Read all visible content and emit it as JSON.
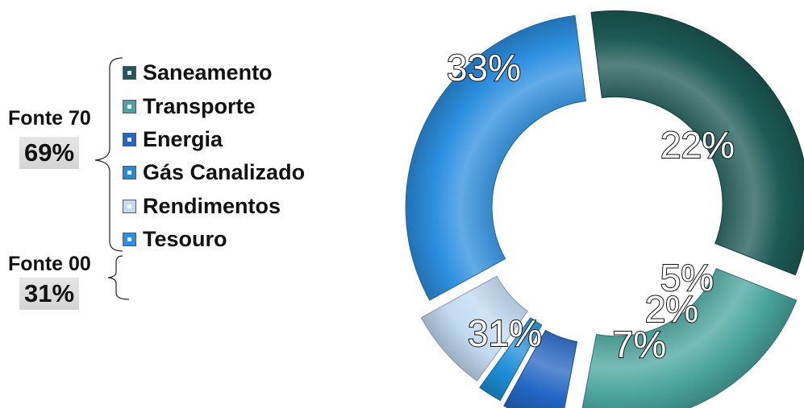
{
  "groups": [
    {
      "label": "Fonte 70",
      "value": "69%"
    },
    {
      "label": "Fonte 00",
      "value": "31%"
    }
  ],
  "chart_data": {
    "type": "pie",
    "variant": "donut-exploded-3d",
    "title": "",
    "legend_position": "left",
    "categories": [
      "Saneamento",
      "Transporte",
      "Energia",
      "Gás Canalizado",
      "Rendimentos",
      "Tesouro"
    ],
    "values": [
      33,
      22,
      5,
      2,
      7,
      31
    ],
    "value_labels": [
      "33%",
      "22%",
      "5%",
      "2%",
      "7%",
      "31%"
    ],
    "colors": [
      "#1d5a55",
      "#4aa59e",
      "#2366c4",
      "#1d8ed8",
      "#c2daf2",
      "#2c8fe0"
    ],
    "start_angle_deg": -7.2,
    "direction": "clockwise"
  }
}
